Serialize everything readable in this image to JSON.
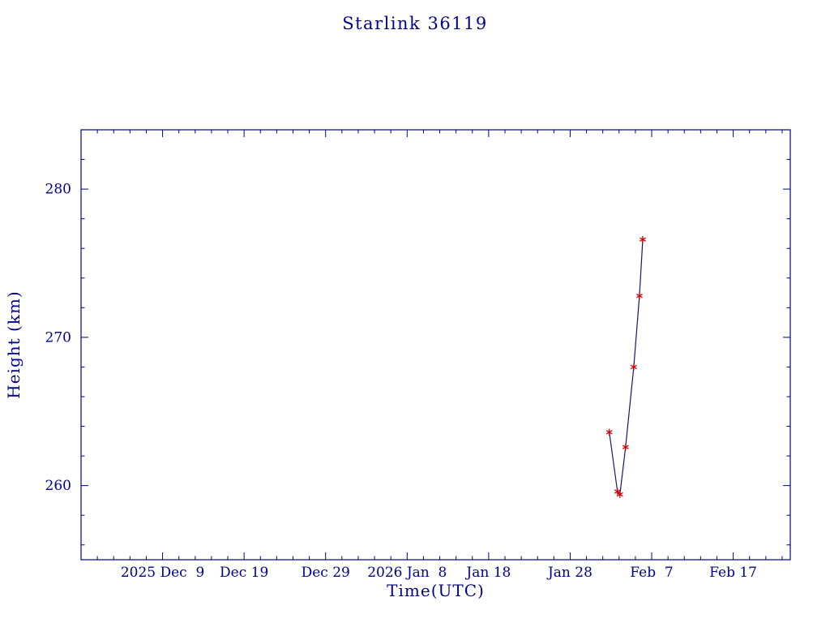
{
  "page": {
    "background": "#ffffff"
  },
  "chart_data": {
    "type": "line",
    "title": "Starlink 36119",
    "xlabel": "Time(UTC)",
    "ylabel": "Height (km)",
    "x_domain_days": [
      -2,
      85
    ],
    "day_scale_note": "day 0 = 2025 Dec 1 (read from axis tick labels)",
    "x_ticks": [
      {
        "day": 8,
        "label": "2025 Dec  9"
      },
      {
        "day": 18,
        "label": "Dec 19"
      },
      {
        "day": 28,
        "label": "Dec 29"
      },
      {
        "day": 38,
        "label": "2026 Jan  8"
      },
      {
        "day": 48,
        "label": "Jan 18"
      },
      {
        "day": 58,
        "label": "Jan 28"
      },
      {
        "day": 68,
        "label": "Feb  7"
      },
      {
        "day": 78,
        "label": "Feb 17"
      }
    ],
    "x_minor_tick_step_days": 2,
    "ylim": [
      255,
      284
    ],
    "y_ticks": [
      260,
      270,
      280
    ],
    "y_minor_tick_step": 2,
    "grid": false,
    "legend": "none",
    "marker_style": "asterisk",
    "points": [
      {
        "day": 62.8,
        "height_km": 263.6,
        "approx_date": "2026 Feb 1.8"
      },
      {
        "day": 63.8,
        "height_km": 259.6,
        "approx_date": "2026 Feb 2.8"
      },
      {
        "day": 64.1,
        "height_km": 259.4,
        "approx_date": "2026 Feb 3.1"
      },
      {
        "day": 64.8,
        "height_km": 262.6,
        "approx_date": "2026 Feb 3.8"
      },
      {
        "day": 65.8,
        "height_km": 268.0,
        "approx_date": "2026 Feb 4.8"
      },
      {
        "day": 66.5,
        "height_km": 272.8,
        "approx_date": "2026 Feb 5.5"
      },
      {
        "day": 66.9,
        "height_km": 276.6,
        "approx_date": "2026 Feb 5.9"
      }
    ],
    "colors": {
      "axis": "#00008b",
      "text": "#00008b",
      "line": "#16166b",
      "marker": "#d40000",
      "background": "#ffffff"
    }
  }
}
